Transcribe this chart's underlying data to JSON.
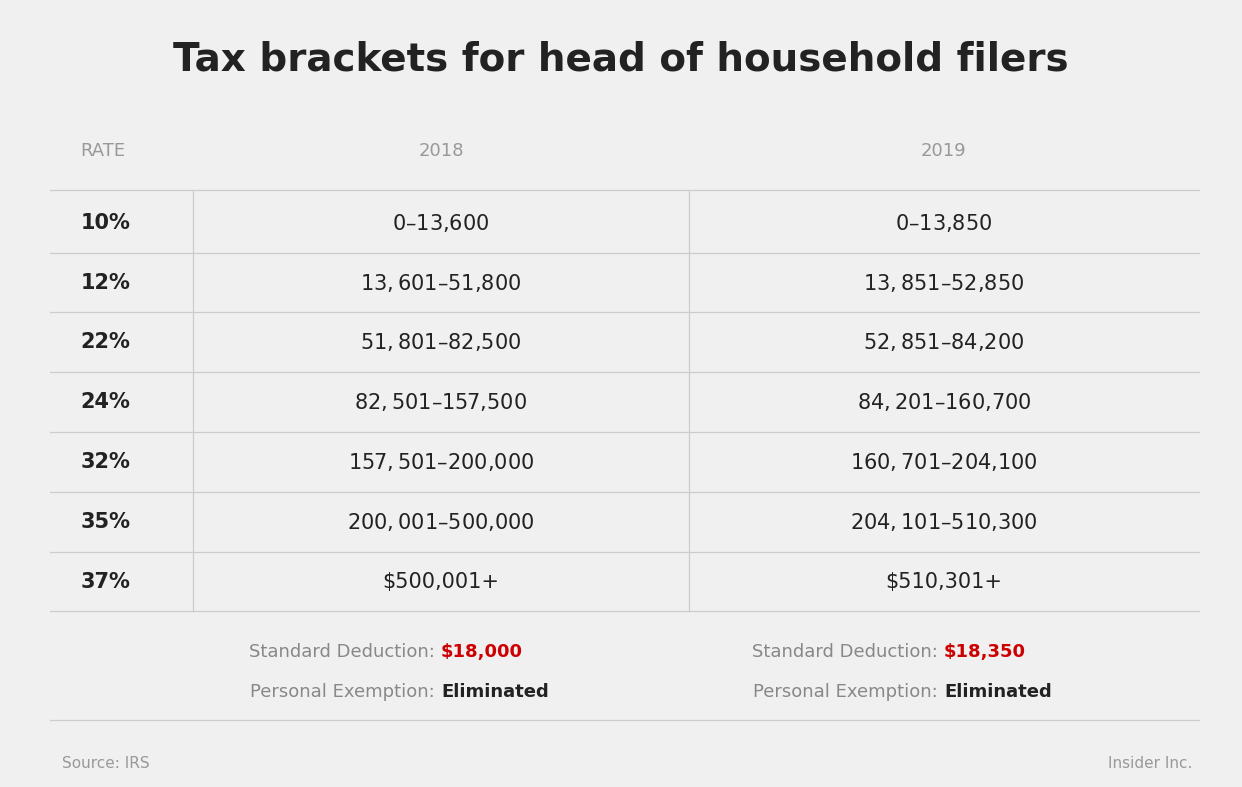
{
  "title": "Tax brackets for head of household filers",
  "background_color": "#f0f0f0",
  "col_header_color": "#999999",
  "rate_col_header": "RATE",
  "col_2018": "2018",
  "col_2019": "2019",
  "rows": [
    {
      "rate": "10%",
      "y2018": "$0 – $13,600",
      "y2019": "$0 – $13,850"
    },
    {
      "rate": "12%",
      "y2018": "$13,601 – $51,800",
      "y2019": "$13,851– $52,850"
    },
    {
      "rate": "22%",
      "y2018": "$51,801 – $82,500",
      "y2019": "$52,851 – $84,200"
    },
    {
      "rate": "24%",
      "y2018": "$82,501 – $157,500",
      "y2019": "$84,201 – $160,700"
    },
    {
      "rate": "32%",
      "y2018": "$157,501 – $200,000",
      "y2019": "$160,701 – $204,100"
    },
    {
      "rate": "35%",
      "y2018": "$200,001–$500,000",
      "y2019": "$204,101 – $510,300"
    },
    {
      "rate": "37%",
      "y2018": "$500,001+",
      "y2019": "$510,301+"
    }
  ],
  "footer_2018_std_label": "Standard Deduction: ",
  "footer_2018_std_value": "$18,000",
  "footer_2018_exempt_label": "Personal Exemption: ",
  "footer_2018_exempt_value": "Eliminated",
  "footer_2019_std_label": "Standard Deduction: ",
  "footer_2019_std_value": "$18,350",
  "footer_2019_exempt_label": "Personal Exemption: ",
  "footer_2019_exempt_value": "Eliminated",
  "red_color": "#cc0000",
  "source_text": "Source: IRS",
  "brand_text": "Insider Inc.",
  "title_fontsize": 28,
  "header_fontsize": 13,
  "row_fontsize": 15,
  "footer_fontsize": 13,
  "source_fontsize": 11,
  "line_color": "#cccccc",
  "text_color_dark": "#222222",
  "text_color_gray": "#888888"
}
